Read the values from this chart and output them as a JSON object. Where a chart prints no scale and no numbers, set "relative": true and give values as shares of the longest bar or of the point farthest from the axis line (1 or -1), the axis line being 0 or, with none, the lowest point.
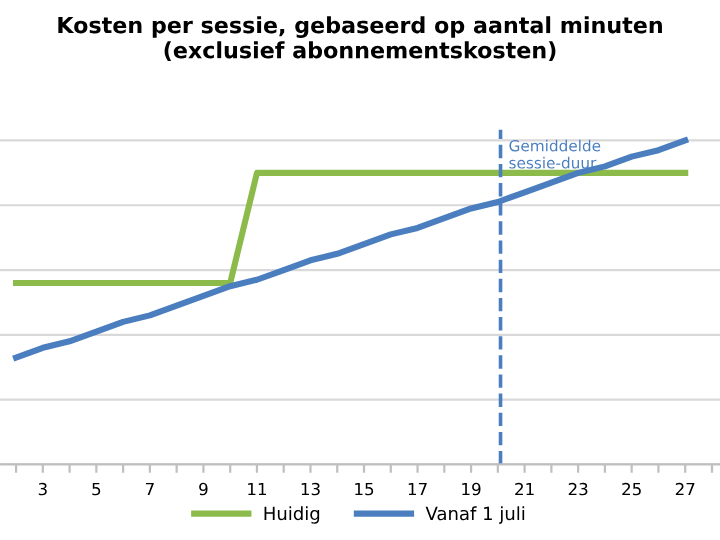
{
  "chart_data": {
    "type": "line",
    "title": "Kosten per sessie, gebaseerd op aantal minuten\n(exclusief abonnementskosten)",
    "relative": true,
    "x": [
      2,
      3,
      4,
      5,
      6,
      7,
      8,
      9,
      10,
      11,
      12,
      13,
      14,
      15,
      16,
      17,
      18,
      19,
      20,
      21,
      22,
      23,
      24,
      25,
      26,
      27
    ],
    "series": [
      {
        "name": "Huidig",
        "color": "#8cbb4c",
        "values": [
          0.56,
          0.56,
          0.56,
          0.56,
          0.56,
          0.56,
          0.56,
          0.56,
          0.56,
          0.9,
          0.9,
          0.9,
          0.9,
          0.9,
          0.9,
          0.9,
          0.9,
          0.9,
          0.9,
          0.9,
          0.9,
          0.9,
          0.9,
          0.9,
          0.9,
          0.9
        ]
      },
      {
        "name": "Vanaf 1 juli",
        "color": "#4a7ebf",
        "values": [
          0.33,
          0.36,
          0.38,
          0.41,
          0.44,
          0.46,
          0.49,
          0.52,
          0.55,
          0.57,
          0.6,
          0.63,
          0.65,
          0.68,
          0.71,
          0.73,
          0.76,
          0.79,
          0.81,
          0.84,
          0.87,
          0.9,
          0.92,
          0.95,
          0.97,
          1.0
        ]
      }
    ],
    "xlim": [
      1.4,
      28.3
    ],
    "xticks": [
      {
        "value": 2,
        "label": null
      },
      3,
      {
        "value": 4,
        "label": null
      },
      5,
      {
        "value": 6,
        "label": null
      },
      7,
      {
        "value": 8,
        "label": null
      },
      9,
      {
        "value": 10,
        "label": null
      },
      11,
      {
        "value": 12,
        "label": null
      },
      13,
      {
        "value": 14,
        "label": null
      },
      15,
      {
        "value": 16,
        "label": null
      },
      17,
      {
        "value": 18,
        "label": null
      },
      19,
      {
        "value": 20,
        "label": null
      },
      21,
      {
        "value": 22,
        "label": null
      },
      23,
      {
        "value": 24,
        "label": null
      },
      25,
      {
        "value": 26,
        "label": null
      },
      27,
      {
        "value": 28,
        "label": null
      }
    ],
    "ref_lines": [
      {
        "axis": "x",
        "value": 20.1,
        "label": "Gemiddelde\nsessie-duur",
        "color": "#4a7ebf",
        "line_style": "dashed"
      }
    ],
    "grid": "y",
    "legend": "bottom",
    "marker": "none",
    "line_style": "solid"
  }
}
